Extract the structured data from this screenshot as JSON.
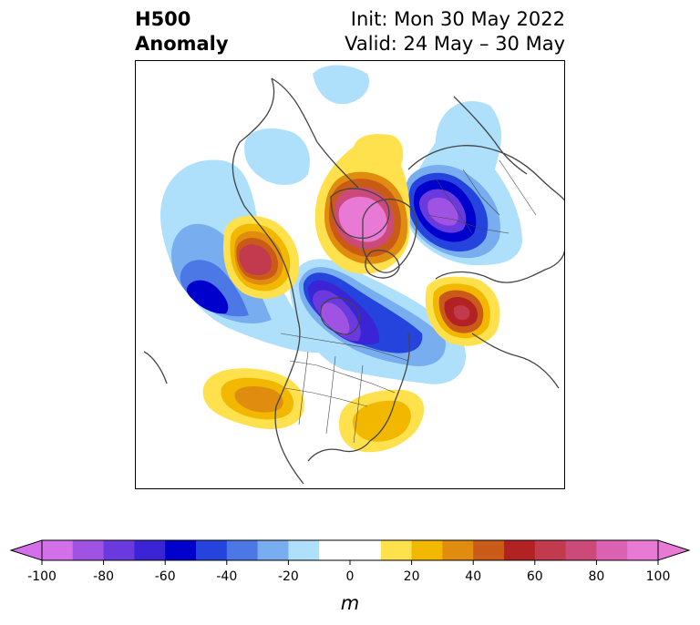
{
  "title": {
    "left_line1": "H500",
    "left_line2": "Anomaly",
    "right_line1": "Init: Mon 30 May 2022",
    "right_line2": "Valid: 24 May – 30 May"
  },
  "colorbar": {
    "unit": "m",
    "ticks": [
      "-100",
      "-80",
      "-60",
      "-40",
      "-20",
      "0",
      "20",
      "40",
      "60",
      "80",
      "100"
    ],
    "colors": [
      "#d36fe8",
      "#a052e2",
      "#6b3adf",
      "#3a24d5",
      "#0000cc",
      "#2444dd",
      "#4c78e6",
      "#78aef0",
      "#aee0fb",
      "#ffffff",
      "#ffffff",
      "#ffe14d",
      "#f2b800",
      "#e08c0e",
      "#c95a18",
      "#b22222",
      "#c13a4e",
      "#cc4a7a",
      "#db62b2",
      "#e87ad6"
    ],
    "extend": "both"
  },
  "map": {
    "projection": "polar stereographic, North America / Arctic",
    "colors": {
      "neg_light": "#aee0fb",
      "neg_2": "#78aef0",
      "neg_3": "#4c78e6",
      "neg_4": "#2444dd",
      "neg_5": "#0000cc",
      "neg_6": "#3a24d5",
      "neg_7": "#6b3adf",
      "neg_8": "#a052e2",
      "pos_1": "#ffe14d",
      "pos_2": "#f2b800",
      "pos_3": "#e08c0e",
      "pos_4": "#c95a18",
      "pos_5": "#b22222",
      "pos_6": "#c13a4e",
      "pos_7": "#cc4a7a",
      "pos_8": "#e87ad6",
      "coast": "#444444"
    }
  }
}
